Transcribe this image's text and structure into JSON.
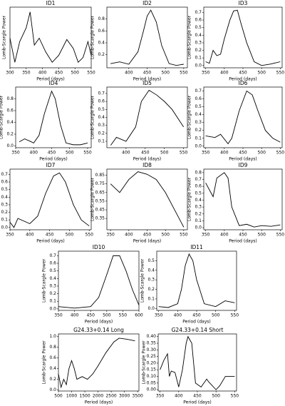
{
  "chart_data": [
    {
      "type": "line",
      "title": "ID1",
      "xlabel": "Period (days)",
      "ylabel": "Lomb-Scargle Power",
      "color": "#000000",
      "x": [
        300,
        315,
        330,
        350,
        362,
        375,
        390,
        410,
        430,
        450,
        475,
        495,
        510,
        525,
        540,
        550
      ],
      "values": [
        0.4,
        0.05,
        0.35,
        0.55,
        0.78,
        0.3,
        0.4,
        0.2,
        0.05,
        0.15,
        0.38,
        0.25,
        0.05,
        0.12,
        0.35,
        0.15
      ],
      "xlim": [
        300,
        550
      ],
      "ylim": [
        -0.03,
        0.85
      ],
      "xticks": [
        300,
        350,
        400,
        450,
        500,
        550
      ]
    },
    {
      "type": "line",
      "title": "ID2",
      "xlabel": "Period (days)",
      "ylabel": "Lomb-Scargle Power",
      "color": "#000000",
      "x": [
        350,
        375,
        400,
        425,
        440,
        450,
        460,
        475,
        490,
        510,
        530,
        550
      ],
      "values": [
        0.05,
        0.08,
        0.04,
        0.25,
        0.6,
        0.85,
        0.95,
        0.75,
        0.35,
        0.05,
        0.02,
        0.04
      ],
      "xlim": [
        340,
        560
      ],
      "ylim": [
        -0.02,
        1.0
      ],
      "xticks": [
        400,
        450,
        500,
        550
      ],
      "yticks": [
        0.2,
        0.4,
        0.6,
        0.8
      ]
    },
    {
      "type": "line",
      "title": "ID3",
      "xlabel": "Period (days)",
      "ylabel": "Lomb-Scargle Power",
      "color": "#000000",
      "x": [
        350,
        360,
        370,
        380,
        390,
        400,
        415,
        425,
        435,
        445,
        460,
        480,
        500,
        525,
        550
      ],
      "values": [
        0.05,
        0.03,
        0.2,
        0.13,
        0.15,
        0.35,
        0.6,
        0.72,
        0.73,
        0.55,
        0.3,
        0.05,
        0.0,
        0.02,
        0.05
      ],
      "xlim": [
        345,
        555
      ],
      "ylim": [
        -0.03,
        0.77
      ],
      "xticks": [
        350,
        400,
        450,
        500,
        550
      ],
      "yticks": [
        {
          "value": 0,
          "label": "0.0"
        },
        0.1,
        0.2,
        0.3,
        0.4,
        0.5,
        0.6,
        0.7
      ]
    },
    {
      "type": "line",
      "title": "ID4",
      "xlabel": "Period (days)",
      "ylabel": "Lomb-Scargle Power",
      "color": "#000000",
      "x": [
        360,
        375,
        390,
        400,
        415,
        430,
        450,
        460,
        475,
        490,
        510,
        530,
        550
      ],
      "values": [
        0.07,
        0.12,
        0.08,
        0.05,
        0.18,
        0.55,
        0.93,
        0.8,
        0.35,
        0.05,
        0.02,
        0.02,
        0.05
      ],
      "xlim": [
        350,
        560
      ],
      "ylim": [
        -0.03,
        1.0
      ],
      "xticks": [
        350,
        400,
        450,
        500,
        550
      ],
      "yticks": [
        {
          "value": 0,
          "label": "0.0"
        },
        0.2,
        0.4,
        0.6,
        0.8
      ]
    },
    {
      "type": "line",
      "title": "ID5",
      "xlabel": "Period (days)",
      "ylabel": "Lomb-Scargle Power",
      "color": "#000000",
      "x": [
        360,
        375,
        400,
        425,
        440,
        460,
        480,
        500,
        520,
        550
      ],
      "values": [
        0.05,
        0.15,
        0.1,
        0.28,
        0.6,
        0.74,
        0.68,
        0.6,
        0.5,
        0.28
      ],
      "xlim": [
        350,
        560
      ],
      "ylim": [
        0.02,
        0.78
      ],
      "xticks": [
        400,
        450,
        500,
        550
      ],
      "yticks": [
        0.1,
        0.2,
        0.3,
        0.4,
        0.5,
        0.6,
        0.7
      ]
    },
    {
      "type": "line",
      "title": "ID6",
      "xlabel": "Period (days)",
      "ylabel": "Lomb-Scargle Power",
      "color": "#000000",
      "x": [
        350,
        375,
        390,
        410,
        420,
        440,
        460,
        475,
        490,
        510,
        530,
        550
      ],
      "values": [
        0.13,
        0.11,
        0.15,
        0.03,
        0.1,
        0.45,
        0.7,
        0.65,
        0.45,
        0.2,
        0.1,
        0.05
      ],
      "xlim": [
        345,
        555
      ],
      "ylim": [
        -0.02,
        0.75
      ],
      "xticks": [
        350,
        400,
        450,
        500,
        550
      ],
      "yticks": [
        {
          "value": 0,
          "label": "0.0"
        },
        0.1,
        0.2,
        0.3,
        0.4,
        0.5,
        0.6,
        0.7
      ]
    },
    {
      "type": "line",
      "title": "ID7",
      "xlabel": "Period (days)",
      "ylabel": "Lomb-Scargle Power",
      "color": "#000000",
      "x": [
        350,
        360,
        370,
        400,
        420,
        440,
        460,
        475,
        490,
        510,
        530,
        550
      ],
      "values": [
        0.07,
        0.0,
        0.12,
        0.05,
        0.15,
        0.45,
        0.68,
        0.72,
        0.6,
        0.3,
        0.1,
        0.02
      ],
      "xlim": [
        350,
        555
      ],
      "ylim": [
        -0.03,
        0.77
      ],
      "xticks": [
        350,
        400,
        450,
        500,
        550
      ],
      "yticks": [
        {
          "value": 0,
          "label": "0.0"
        },
        0.1,
        0.2,
        0.3,
        0.4,
        0.5,
        0.6,
        0.7
      ]
    },
    {
      "type": "line",
      "title": "ID8",
      "xlabel": "Period (days)",
      "ylabel": "Lomb-Scargle Power",
      "color": "#000000",
      "x": [
        350,
        375,
        400,
        425,
        450,
        475,
        500,
        525,
        550
      ],
      "values": [
        0.75,
        0.65,
        0.8,
        0.89,
        0.86,
        0.8,
        0.65,
        0.45,
        0.25
      ],
      "xlim": [
        340,
        560
      ],
      "ylim": [
        0.22,
        0.92
      ],
      "xticks": [
        350,
        400,
        450,
        500,
        550
      ],
      "yticks": [
        0.35,
        0.45,
        0.55,
        0.65,
        0.75,
        0.85
      ]
    },
    {
      "type": "line",
      "title": "ID9",
      "xlabel": "Period (days)",
      "ylabel": "Lomb-Scargle Power",
      "color": "#000000",
      "x": [
        350,
        360,
        370,
        380,
        400,
        410,
        420,
        440,
        460,
        480,
        500,
        525,
        550
      ],
      "values": [
        0.65,
        0.55,
        0.45,
        0.72,
        0.8,
        0.72,
        0.3,
        0.03,
        0.05,
        0.01,
        0.03,
        0.02,
        0.04
      ],
      "xlim": [
        345,
        555
      ],
      "ylim": [
        -0.03,
        0.85
      ],
      "xticks": [
        350,
        400,
        450,
        500,
        550
      ],
      "yticks": [
        {
          "value": 0,
          "label": "0.0"
        },
        0.1,
        0.2,
        0.3,
        0.4,
        0.5,
        0.6,
        0.7,
        0.8
      ]
    },
    {
      "type": "line",
      "title": "ID10",
      "xlabel": "Period (days)",
      "ylabel": "Lomb-Scargle Power",
      "color": "#000000",
      "x": [
        350,
        400,
        450,
        475,
        500,
        520,
        540,
        560,
        580,
        600
      ],
      "values": [
        0.03,
        0.01,
        0.03,
        0.15,
        0.45,
        0.7,
        0.7,
        0.5,
        0.25,
        0.05
      ],
      "xlim": [
        350,
        600
      ],
      "ylim": [
        -0.02,
        0.76
      ],
      "xticks": [
        350,
        400,
        450,
        500,
        550,
        600
      ],
      "yticks": [
        {
          "value": 0,
          "label": "0.0"
        },
        0.1,
        0.2,
        0.3,
        0.4,
        0.5,
        0.6,
        0.7
      ]
    },
    {
      "type": "line",
      "title": "ID11",
      "xlabel": "Period (days)",
      "ylabel": "Lomb-Scargle Power",
      "color": "#000000",
      "x": [
        350,
        375,
        400,
        410,
        420,
        430,
        440,
        450,
        470,
        500,
        525,
        550
      ],
      "values": [
        0.02,
        0.01,
        0.05,
        0.2,
        0.45,
        0.57,
        0.5,
        0.3,
        0.05,
        0.02,
        0.08,
        0.06
      ],
      "xlim": [
        345,
        555
      ],
      "ylim": [
        -0.02,
        0.6
      ],
      "xticks": [
        350,
        400,
        450,
        500,
        550
      ],
      "yticks": [
        {
          "value": 0,
          "label": "0.0"
        },
        0.1,
        0.2,
        0.3,
        0.4,
        0.5
      ]
    },
    {
      "type": "line",
      "title": "G24.33+0.14 Long",
      "xlabel": "Period (days)",
      "ylabel": "Lomb-Scargle Power",
      "color": "#000000",
      "x": [
        500,
        600,
        700,
        800,
        900,
        1000,
        1100,
        1200,
        1400,
        1600,
        1800,
        2000,
        2300,
        2600,
        2800,
        3100,
        3400
      ],
      "values": [
        0.3,
        0.05,
        0.2,
        0.1,
        0.4,
        0.55,
        0.4,
        0.2,
        0.25,
        0.2,
        0.3,
        0.45,
        0.7,
        0.9,
        0.97,
        0.95,
        0.92
      ],
      "xlim": [
        500,
        3550
      ],
      "ylim": [
        -0.02,
        1.05
      ],
      "xticks": [
        500,
        1000,
        1500,
        2000,
        2500,
        3000,
        3500
      ],
      "yticks": [
        {
          "value": 0,
          "label": "0.0"
        },
        0.2,
        0.4,
        0.6,
        0.8,
        {
          "value": 1,
          "label": "1.0"
        }
      ]
    },
    {
      "type": "line",
      "title": "G24.33+0.14 Short",
      "xlabel": "Period (days)",
      "ylabel": "Lomb-Scargle Power",
      "color": "#000000",
      "x": [
        350,
        360,
        370,
        375,
        380,
        390,
        400,
        410,
        420,
        425,
        435,
        445,
        460,
        475,
        480,
        500,
        510,
        525,
        540,
        550
      ],
      "values": [
        0.15,
        0.22,
        0.27,
        0.1,
        0.14,
        0.13,
        0.02,
        0.15,
        0.35,
        0.4,
        0.35,
        0.05,
        0.02,
        0.08,
        0.06,
        0.0,
        0.03,
        0.1,
        0.1,
        0.1
      ],
      "xlim": [
        345,
        555
      ],
      "ylim": [
        -0.01,
        0.42
      ],
      "xticks": [
        350,
        400,
        450,
        500,
        550
      ],
      "yticks": [
        {
          "value": 0,
          "label": "0.00"
        },
        0.05,
        {
          "value": 0.1,
          "label": "0.10"
        },
        0.15,
        {
          "value": 0.2,
          "label": "0.20"
        },
        0.25,
        {
          "value": 0.3,
          "label": "0.30"
        },
        0.35,
        {
          "value": 0.4,
          "label": "0.40"
        }
      ]
    }
  ]
}
